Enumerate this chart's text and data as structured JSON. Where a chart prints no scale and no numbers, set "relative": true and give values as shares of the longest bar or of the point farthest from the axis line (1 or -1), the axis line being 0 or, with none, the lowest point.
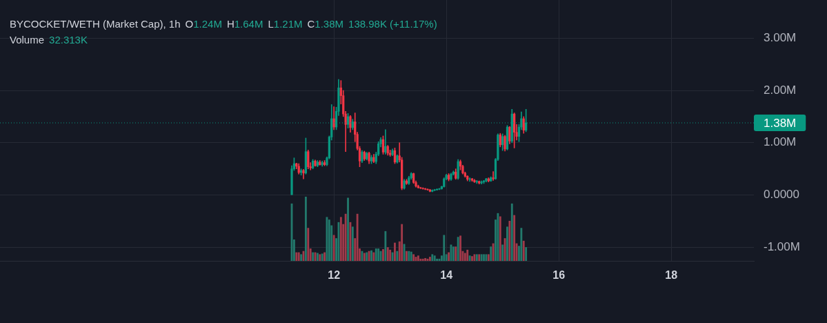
{
  "chart_data": [
    {
      "type": "candlestick",
      "title": "BYCOCKET/WETH (Market Cap), 1h",
      "annotations": [
        "O1.24M",
        "H1.64M",
        "L1.21M",
        "C1.38M",
        "138.98K (+11.17%)"
      ],
      "x": [
        11.25,
        11.2917,
        11.3333,
        11.375,
        11.4167,
        11.4583,
        11.5,
        11.5417,
        11.5833,
        11.625,
        11.6667,
        11.7083,
        11.75,
        11.7917,
        11.8333,
        11.875,
        11.9167,
        11.9583,
        12,
        12.0417,
        12.0833,
        12.125,
        12.1667,
        12.2083,
        12.25,
        12.2917,
        12.3333,
        12.375,
        12.4167,
        12.4583,
        12.5,
        12.5417,
        12.5833,
        12.625,
        12.6667,
        12.7083,
        12.75,
        12.7917,
        12.8333,
        12.875,
        12.9167,
        12.9583,
        13,
        13.0417,
        13.0833,
        13.125,
        13.1667,
        13.2083,
        13.25,
        13.2917,
        13.3333,
        13.375,
        13.4167,
        13.4583,
        13.5,
        13.5417,
        13.5833,
        13.625,
        13.6667,
        13.7083,
        13.75,
        13.7917,
        13.8333,
        13.875,
        13.9167,
        13.9583,
        14,
        14.0417,
        14.0833,
        14.125,
        14.1667,
        14.2083,
        14.25,
        14.2917,
        14.3333,
        14.375,
        14.4167,
        14.4583,
        14.5,
        14.5417,
        14.5833,
        14.625,
        14.6667,
        14.7083,
        14.75,
        14.7917,
        14.8333,
        14.875,
        14.9167,
        14.9583,
        15,
        15.0417,
        15.0833,
        15.125,
        15.1667,
        15.2083,
        15.25,
        15.2917,
        15.3333,
        15.375,
        15.4167
      ],
      "ohlc": [
        [
          0.0,
          0.56,
          0.0,
          0.5
        ],
        [
          0.5,
          0.71,
          0.47,
          0.6
        ],
        [
          0.6,
          0.61,
          0.5,
          0.55
        ],
        [
          0.55,
          0.6,
          0.4,
          0.43
        ],
        [
          0.43,
          0.5,
          0.38,
          0.47
        ],
        [
          0.47,
          0.49,
          0.31,
          0.42
        ],
        [
          0.42,
          1.09,
          0.4,
          0.83
        ],
        [
          0.83,
          0.86,
          0.5,
          0.54
        ],
        [
          0.54,
          0.62,
          0.48,
          0.52
        ],
        [
          0.52,
          0.68,
          0.5,
          0.65
        ],
        [
          0.65,
          0.67,
          0.55,
          0.56
        ],
        [
          0.56,
          0.66,
          0.54,
          0.63
        ],
        [
          0.63,
          0.66,
          0.57,
          0.58
        ],
        [
          0.58,
          0.65,
          0.55,
          0.62
        ],
        [
          0.62,
          0.66,
          0.56,
          0.58
        ],
        [
          0.58,
          0.73,
          0.56,
          0.71
        ],
        [
          0.71,
          1.13,
          0.69,
          1.11
        ],
        [
          1.11,
          1.73,
          1.05,
          1.46
        ],
        [
          1.46,
          1.69,
          1.25,
          1.3
        ],
        [
          1.3,
          1.68,
          1.25,
          1.6
        ],
        [
          1.6,
          2.21,
          1.52,
          2.05
        ],
        [
          2.05,
          2.19,
          1.74,
          1.9
        ],
        [
          1.9,
          2.0,
          1.5,
          1.55
        ],
        [
          1.55,
          1.6,
          0.83,
          1.35
        ],
        [
          1.35,
          1.56,
          1.28,
          1.5
        ],
        [
          1.5,
          1.52,
          1.2,
          1.29
        ],
        [
          1.29,
          1.45,
          1.25,
          1.4
        ],
        [
          1.4,
          1.57,
          1.02,
          1.16
        ],
        [
          1.16,
          1.2,
          0.86,
          0.89
        ],
        [
          0.89,
          0.93,
          0.54,
          0.65
        ],
        [
          0.65,
          0.85,
          0.62,
          0.82
        ],
        [
          0.82,
          0.84,
          0.66,
          0.69
        ],
        [
          0.69,
          0.82,
          0.67,
          0.8
        ],
        [
          0.8,
          0.82,
          0.6,
          0.65
        ],
        [
          0.65,
          0.76,
          0.6,
          0.72
        ],
        [
          0.72,
          0.78,
          0.62,
          0.64
        ],
        [
          0.64,
          0.82,
          0.6,
          0.78
        ],
        [
          0.78,
          1.02,
          0.75,
          0.98
        ],
        [
          0.98,
          1.1,
          0.92,
          1.06
        ],
        [
          1.06,
          1.13,
          0.78,
          0.82
        ],
        [
          0.82,
          1.25,
          0.78,
          0.93
        ],
        [
          0.93,
          0.95,
          0.76,
          0.8
        ],
        [
          0.8,
          0.86,
          0.74,
          0.77
        ],
        [
          0.77,
          0.88,
          0.75,
          0.85
        ],
        [
          0.85,
          0.9,
          0.6,
          0.63
        ],
        [
          0.63,
          0.77,
          0.61,
          0.75
        ],
        [
          0.75,
          1.0,
          0.63,
          0.67
        ],
        [
          0.67,
          0.72,
          0.1,
          0.13
        ],
        [
          0.13,
          0.3,
          0.11,
          0.27
        ],
        [
          0.27,
          0.3,
          0.2,
          0.22
        ],
        [
          0.22,
          0.36,
          0.2,
          0.33
        ],
        [
          0.33,
          0.43,
          0.3,
          0.41
        ],
        [
          0.41,
          0.42,
          0.22,
          0.24
        ],
        [
          0.24,
          0.27,
          0.15,
          0.17
        ],
        [
          0.17,
          0.19,
          0.13,
          0.14
        ],
        [
          0.14,
          0.15,
          0.12,
          0.13
        ],
        [
          0.13,
          0.14,
          0.11,
          0.12
        ],
        [
          0.12,
          0.13,
          0.1,
          0.11
        ],
        [
          0.11,
          0.12,
          0.09,
          0.1
        ],
        [
          0.1,
          0.11,
          0.06,
          0.07
        ],
        [
          0.07,
          0.1,
          0.06,
          0.09
        ],
        [
          0.09,
          0.11,
          0.08,
          0.1
        ],
        [
          0.1,
          0.12,
          0.09,
          0.11
        ],
        [
          0.11,
          0.13,
          0.1,
          0.12
        ],
        [
          0.12,
          0.17,
          0.11,
          0.16
        ],
        [
          0.16,
          0.33,
          0.15,
          0.31
        ],
        [
          0.31,
          0.4,
          0.29,
          0.38
        ],
        [
          0.38,
          0.41,
          0.27,
          0.3
        ],
        [
          0.3,
          0.42,
          0.28,
          0.4
        ],
        [
          0.4,
          0.46,
          0.38,
          0.44
        ],
        [
          0.44,
          0.5,
          0.3,
          0.32
        ],
        [
          0.32,
          0.68,
          0.3,
          0.64
        ],
        [
          0.64,
          0.67,
          0.48,
          0.55
        ],
        [
          0.55,
          0.57,
          0.4,
          0.42
        ],
        [
          0.42,
          0.44,
          0.34,
          0.36
        ],
        [
          0.36,
          0.37,
          0.27,
          0.3
        ],
        [
          0.3,
          0.33,
          0.26,
          0.31
        ],
        [
          0.31,
          0.32,
          0.26,
          0.28
        ],
        [
          0.28,
          0.3,
          0.24,
          0.25
        ],
        [
          0.25,
          0.28,
          0.22,
          0.26
        ],
        [
          0.26,
          0.27,
          0.21,
          0.23
        ],
        [
          0.23,
          0.27,
          0.21,
          0.25
        ],
        [
          0.25,
          0.28,
          0.22,
          0.27
        ],
        [
          0.27,
          0.32,
          0.25,
          0.31
        ],
        [
          0.31,
          0.33,
          0.25,
          0.27
        ],
        [
          0.27,
          0.35,
          0.26,
          0.33
        ],
        [
          0.33,
          0.45,
          0.28,
          0.31
        ],
        [
          0.31,
          0.7,
          0.3,
          0.68
        ],
        [
          0.68,
          1.17,
          0.66,
          1.15
        ],
        [
          1.15,
          1.18,
          0.92,
          0.96
        ],
        [
          0.96,
          1.17,
          0.85,
          1.12
        ],
        [
          1.12,
          1.14,
          0.84,
          0.88
        ],
        [
          0.88,
          1.33,
          0.86,
          1.3
        ],
        [
          1.3,
          1.31,
          0.98,
          1.03
        ],
        [
          1.03,
          1.64,
          1.0,
          1.55
        ],
        [
          1.55,
          1.57,
          0.9,
          1.2
        ],
        [
          1.2,
          1.35,
          1.05,
          1.12
        ],
        [
          1.12,
          1.35,
          1.02,
          1.3
        ],
        [
          1.3,
          1.59,
          1.25,
          1.46
        ],
        [
          1.46,
          1.5,
          1.18,
          1.24
        ],
        [
          1.24,
          1.64,
          1.21,
          1.38
        ]
      ],
      "colors": [
        "#089981",
        "#089981",
        "#f23645",
        "#f23645",
        "#089981",
        "#f23645",
        "#089981",
        "#f23645",
        "#f23645",
        "#089981",
        "#f23645",
        "#089981",
        "#f23645",
        "#089981",
        "#f23645",
        "#089981",
        "#089981",
        "#089981",
        "#f23645",
        "#089981",
        "#089981",
        "#f23645",
        "#f23645",
        "#f23645",
        "#089981",
        "#f23645",
        "#089981",
        "#f23645",
        "#f23645",
        "#f23645",
        "#089981",
        "#f23645",
        "#089981",
        "#f23645",
        "#089981",
        "#f23645",
        "#089981",
        "#089981",
        "#089981",
        "#f23645",
        "#089981",
        "#f23645",
        "#f23645",
        "#089981",
        "#f23645",
        "#089981",
        "#f23645",
        "#f23645",
        "#089981",
        "#f23645",
        "#089981",
        "#089981",
        "#f23645",
        "#f23645",
        "#f23645",
        "#f23645",
        "#f23645",
        "#f23645",
        "#f23645",
        "#f23645",
        "#089981",
        "#089981",
        "#089981",
        "#089981",
        "#089981",
        "#089981",
        "#089981",
        "#f23645",
        "#089981",
        "#089981",
        "#f23645",
        "#089981",
        "#f23645",
        "#f23645",
        "#f23645",
        "#f23645",
        "#089981",
        "#f23645",
        "#f23645",
        "#089981",
        "#f23645",
        "#089981",
        "#089981",
        "#089981",
        "#f23645",
        "#089981",
        "#f23645",
        "#089981",
        "#089981",
        "#f23645",
        "#089981",
        "#f23645",
        "#089981",
        "#f23645",
        "#089981",
        "#f23645",
        "#f23645",
        "#089981",
        "#089981",
        "#f23645",
        "#089981"
      ],
      "xlim": [
        6.06,
        19.47
      ],
      "xticks": [
        12,
        14,
        16,
        18
      ],
      "ylim": [
        -1.26,
        3.73
      ],
      "yticks": [
        {
          "value": -1,
          "label": "-1.00M"
        },
        {
          "value": 0,
          "label": "0.0000"
        },
        {
          "value": 1,
          "label": "1.00M"
        },
        {
          "value": 2,
          "label": "2.00M"
        },
        {
          "value": 3,
          "label": "3.00M"
        }
      ],
      "grid": true,
      "ref_lines": [
        {
          "axis": "y",
          "value": 1.38,
          "label": "1.38M",
          "color": "#089981",
          "line_style": "dotted"
        }
      ]
    },
    {
      "type": "bar",
      "title": "Volume",
      "annotations": [
        "32.313K"
      ],
      "relative": true,
      "tick_labels": false,
      "x": [
        11.25,
        11.2917,
        11.3333,
        11.375,
        11.4167,
        11.4583,
        11.5,
        11.5417,
        11.5833,
        11.625,
        11.6667,
        11.7083,
        11.75,
        11.7917,
        11.8333,
        11.875,
        11.9167,
        11.9583,
        12,
        12.0417,
        12.0833,
        12.125,
        12.1667,
        12.2083,
        12.25,
        12.2917,
        12.3333,
        12.375,
        12.4167,
        12.4583,
        12.5,
        12.5417,
        12.5833,
        12.625,
        12.6667,
        12.7083,
        12.75,
        12.7917,
        12.8333,
        12.875,
        12.9167,
        12.9583,
        13,
        13.0417,
        13.0833,
        13.125,
        13.1667,
        13.2083,
        13.25,
        13.2917,
        13.3333,
        13.375,
        13.4167,
        13.4583,
        13.5,
        13.5417,
        13.5833,
        13.625,
        13.6667,
        13.7083,
        13.75,
        13.7917,
        13.8333,
        13.875,
        13.9167,
        13.9583,
        14,
        14.0417,
        14.0833,
        14.125,
        14.1667,
        14.2083,
        14.25,
        14.2917,
        14.3333,
        14.375,
        14.4167,
        14.4583,
        14.5,
        14.5417,
        14.5833,
        14.625,
        14.6667,
        14.7083,
        14.75,
        14.7917,
        14.8333,
        14.875,
        14.9167,
        14.9583,
        15,
        15.0417,
        15.0833,
        15.125,
        15.1667,
        15.2083,
        15.25,
        15.2917,
        15.3333,
        15.375,
        15.4167
      ],
      "xlim": [
        6.06,
        19.47
      ],
      "xticks": [
        12,
        14,
        16,
        18
      ],
      "values": [
        0.89,
        0.33,
        0.13,
        0.13,
        0.1,
        0.15,
        1.0,
        0.51,
        0.19,
        0.13,
        0.13,
        0.12,
        0.1,
        0.11,
        0.13,
        0.68,
        0.64,
        0.55,
        0.4,
        0.35,
        0.6,
        0.68,
        0.57,
        0.73,
        0.98,
        0.6,
        0.53,
        0.35,
        0.73,
        0.19,
        0.15,
        0.12,
        0.13,
        0.15,
        0.16,
        0.13,
        0.19,
        0.19,
        0.15,
        0.18,
        0.46,
        0.21,
        0.17,
        0.13,
        0.28,
        0.15,
        0.3,
        0.57,
        0.26,
        0.15,
        0.15,
        0.14,
        0.1,
        0.06,
        0.08,
        0.03,
        0.03,
        0.04,
        0.03,
        0.06,
        0.1,
        0.08,
        0.03,
        0.03,
        0.08,
        0.4,
        0.1,
        0.13,
        0.25,
        0.22,
        0.22,
        0.37,
        0.39,
        0.15,
        0.12,
        0.17,
        0.08,
        0.07,
        0.1,
        0.1,
        0.1,
        0.1,
        0.1,
        0.1,
        0.1,
        0.22,
        0.27,
        0.64,
        0.74,
        0.69,
        0.25,
        0.35,
        0.53,
        0.62,
        0.89,
        0.71,
        0.27,
        0.23,
        0.51,
        0.31,
        0.21
      ],
      "colors": [
        "#22796c",
        "#22796c",
        "#a03a4a",
        "#a03a4a",
        "#22796c",
        "#a03a4a",
        "#22796c",
        "#a03a4a",
        "#a03a4a",
        "#22796c",
        "#a03a4a",
        "#22796c",
        "#a03a4a",
        "#22796c",
        "#a03a4a",
        "#22796c",
        "#22796c",
        "#22796c",
        "#a03a4a",
        "#22796c",
        "#22796c",
        "#a03a4a",
        "#a03a4a",
        "#a03a4a",
        "#22796c",
        "#a03a4a",
        "#22796c",
        "#a03a4a",
        "#a03a4a",
        "#a03a4a",
        "#22796c",
        "#a03a4a",
        "#22796c",
        "#a03a4a",
        "#22796c",
        "#a03a4a",
        "#22796c",
        "#22796c",
        "#22796c",
        "#a03a4a",
        "#22796c",
        "#a03a4a",
        "#a03a4a",
        "#22796c",
        "#a03a4a",
        "#22796c",
        "#a03a4a",
        "#a03a4a",
        "#22796c",
        "#a03a4a",
        "#22796c",
        "#22796c",
        "#a03a4a",
        "#a03a4a",
        "#a03a4a",
        "#a03a4a",
        "#a03a4a",
        "#a03a4a",
        "#a03a4a",
        "#a03a4a",
        "#22796c",
        "#22796c",
        "#22796c",
        "#22796c",
        "#22796c",
        "#22796c",
        "#22796c",
        "#a03a4a",
        "#22796c",
        "#22796c",
        "#a03a4a",
        "#22796c",
        "#a03a4a",
        "#a03a4a",
        "#a03a4a",
        "#a03a4a",
        "#22796c",
        "#a03a4a",
        "#a03a4a",
        "#22796c",
        "#a03a4a",
        "#22796c",
        "#22796c",
        "#22796c",
        "#a03a4a",
        "#22796c",
        "#a03a4a",
        "#22796c",
        "#22796c",
        "#a03a4a",
        "#22796c",
        "#a03a4a",
        "#22796c",
        "#a03a4a",
        "#22796c",
        "#a03a4a",
        "#a03a4a",
        "#22796c",
        "#22796c",
        "#a03a4a",
        "#22796c"
      ]
    }
  ]
}
